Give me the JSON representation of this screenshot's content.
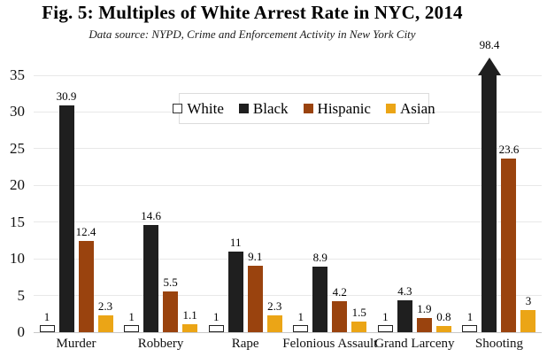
{
  "header": {
    "title": "Fig. 5: Multiples of White Arrest Rate in NYC, 2014",
    "subtitle": "Data source: NYPD, Crime and Enforcement Activity in New York City"
  },
  "colors": {
    "white_series_fill": "#FFFFFF",
    "white_series_border": "#222222",
    "black_series": "#1F1F1F",
    "hispanic_series": "#9A430E",
    "asian_series": "#EBA516",
    "gridline": "#E8E8E8",
    "axis_line": "#C8C8C8"
  },
  "chart_data": {
    "type": "bar",
    "title": "Fig. 5: Multiples of White Arrest Rate in NYC, 2014",
    "subtitle": "Data source: NYPD, Crime and Enforcement Activity in New York City",
    "categories": [
      "Murder",
      "Robbery",
      "Rape",
      "Felonious Assault",
      "Grand Larceny",
      "Shooting"
    ],
    "series": [
      {
        "name": "White",
        "color": "#FFFFFF",
        "outlined": true,
        "values": [
          1,
          1,
          1,
          1,
          1,
          1
        ]
      },
      {
        "name": "Black",
        "color": "#1F1F1F",
        "outlined": false,
        "values": [
          30.9,
          14.6,
          11,
          8.9,
          4.3,
          98.4
        ]
      },
      {
        "name": "Hispanic",
        "color": "#9A430E",
        "outlined": false,
        "values": [
          12.4,
          5.5,
          9.1,
          4.2,
          1.9,
          23.6
        ]
      },
      {
        "name": "Asian",
        "color": "#EBA516",
        "outlined": false,
        "values": [
          2.3,
          1.1,
          2.3,
          1.5,
          0.8,
          3
        ]
      }
    ],
    "data_labels_shown": true,
    "ylim": [
      0,
      35
    ],
    "yticks": [
      0,
      5,
      10,
      15,
      20,
      25,
      30,
      35
    ],
    "grid": true,
    "legend_position": "top-center",
    "clipped_bar": {
      "category": "Shooting",
      "series": "Black",
      "value": 98.4,
      "rendered_as": "upward-arrow",
      "label": "98.4"
    }
  }
}
